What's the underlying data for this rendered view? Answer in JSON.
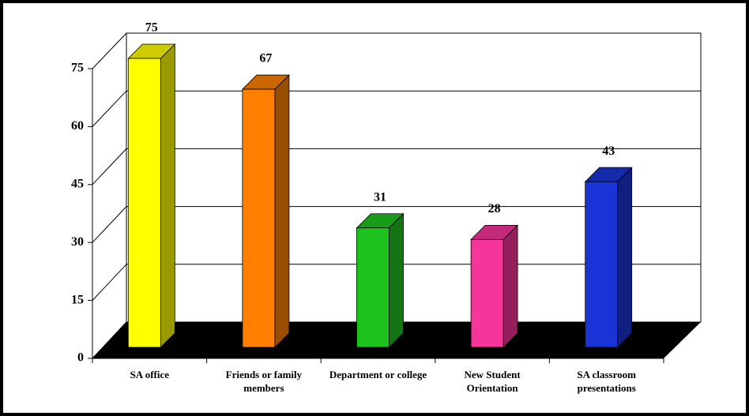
{
  "chart_data": {
    "type": "bar",
    "categories": [
      "SA office",
      "Friends or family members",
      "Department or college",
      "New Student Orientation",
      "SA classroom presentations"
    ],
    "values": [
      75,
      67,
      31,
      28,
      43
    ],
    "colors": [
      "#ffff00",
      "#ff8000",
      "#1ec21e",
      "#f5359a",
      "#1a33d6"
    ],
    "ylim": [
      0,
      75
    ],
    "yticks": [
      0,
      15,
      30,
      45,
      60,
      75
    ],
    "grid": true
  }
}
